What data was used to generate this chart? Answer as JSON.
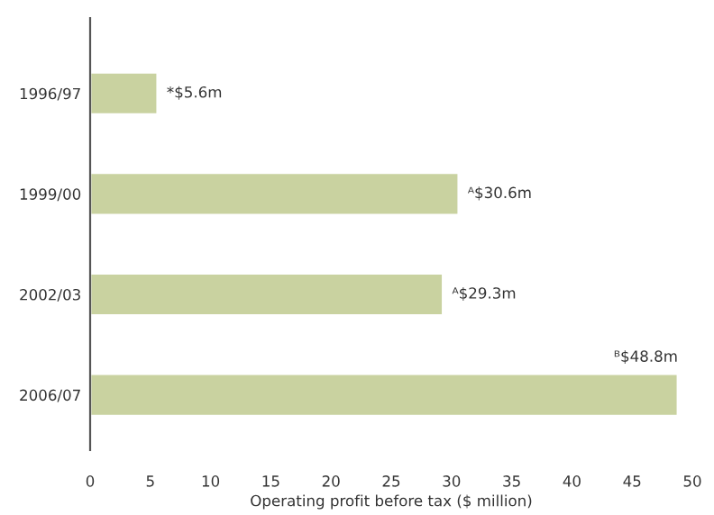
{
  "chart_data": {
    "type": "bar",
    "orientation": "horizontal",
    "xlabel": "Operating profit before tax ($ million)",
    "categories": [
      "1996/97",
      "1999/00",
      "2002/03",
      "2006/07"
    ],
    "series": [
      {
        "color": "#c9d2a0",
        "values": [
          5.6,
          30.6,
          29.3,
          48.8
        ]
      }
    ],
    "value_labels": [
      "*$5.6m",
      "ᴬ$30.6m",
      "ᴬ$29.3m",
      "ᴮ$48.8m"
    ],
    "xlim": [
      0,
      50
    ],
    "xticks": [
      0,
      5,
      10,
      15,
      20,
      25,
      30,
      35,
      40,
      45,
      50
    ],
    "grid": false,
    "legend": false
  }
}
